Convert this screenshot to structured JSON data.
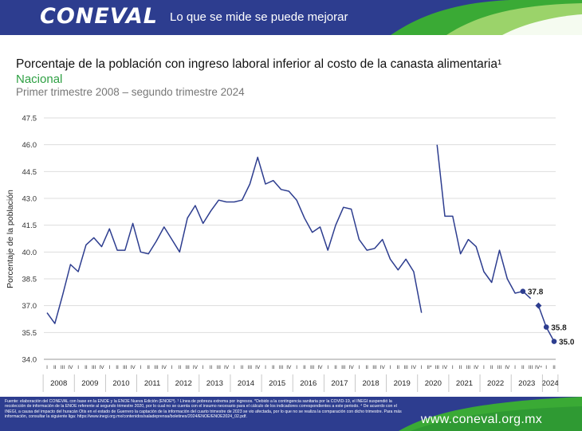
{
  "header": {
    "logo": "CONEVAL",
    "slogan": "Lo que se mide se puede mejorar",
    "colors": {
      "bar": "#2d3d8f",
      "accent_green": "#3aaa35",
      "accent_light": "#9bd36a"
    }
  },
  "chart_data": {
    "type": "line",
    "title": "Porcentaje de la población con ingreso laboral inferior al costo de la canasta alimentaria¹",
    "subtitle": "Nacional",
    "period": "Primer trimestre 2008 – segundo trimestre 2024",
    "ylabel": "Porcentaje de la población",
    "ylim": [
      34.0,
      47.5
    ],
    "yticks": [
      "34.0",
      "35.5",
      "37.0",
      "38.5",
      "40.0",
      "41.5",
      "43.0",
      "44.5",
      "46.0",
      "47.5"
    ],
    "grid": "horizontal",
    "line_color": "#2d3d8f",
    "years": [
      "2008",
      "2009",
      "2010",
      "2011",
      "2012",
      "2013",
      "2014",
      "2015",
      "2016",
      "2017",
      "2018",
      "2019",
      "2020",
      "2021",
      "2022",
      "2023",
      "2024"
    ],
    "quarter_labels": [
      "I",
      "II",
      "III",
      "IV",
      "I",
      "II",
      "III",
      "IV",
      "I",
      "II",
      "III",
      "IV",
      "I",
      "II",
      "III",
      "IV",
      "I",
      "II",
      "III",
      "IV",
      "I",
      "II",
      "III",
      "IV",
      "I",
      "II",
      "III",
      "IV",
      "I",
      "II",
      "III",
      "IV",
      "I",
      "II",
      "III",
      "IV",
      "I",
      "II",
      "III",
      "IV",
      "I",
      "II",
      "III",
      "IV",
      "I",
      "II",
      "III",
      "IV",
      "I",
      "II*",
      "III",
      "IV",
      "I",
      "II",
      "III",
      "IV",
      "I",
      "II",
      "III",
      "IV",
      "I",
      "II",
      "III",
      "IV⁴",
      "I",
      "II"
    ],
    "series": [
      {
        "values": [
          36.6,
          36.0,
          37.6,
          39.3,
          38.9,
          40.4,
          40.8,
          40.3,
          41.3,
          40.1,
          40.1,
          41.6,
          40.0,
          39.9,
          40.6,
          41.4,
          40.7,
          40.0,
          41.9,
          42.6,
          41.6,
          42.3,
          42.9,
          42.8,
          42.8,
          42.9,
          43.8,
          45.3,
          43.8,
          44.0,
          43.5,
          43.4,
          42.9,
          41.9,
          41.1,
          41.4,
          40.1,
          41.5,
          42.5,
          42.4,
          40.7,
          40.1,
          40.2,
          40.7,
          39.6,
          39.0,
          39.6,
          38.9,
          36.6,
          null,
          46.0,
          42.0,
          42.0,
          39.9,
          40.7,
          40.3,
          38.9,
          38.3,
          40.1,
          38.5,
          37.7,
          37.8,
          37.4,
          null,
          null,
          null
        ]
      },
      {
        "values": [
          null,
          null,
          null,
          null,
          null,
          null,
          null,
          null,
          null,
          null,
          null,
          null,
          null,
          null,
          null,
          null,
          null,
          null,
          null,
          null,
          null,
          null,
          null,
          null,
          null,
          null,
          null,
          null,
          null,
          null,
          null,
          null,
          null,
          null,
          null,
          null,
          null,
          null,
          null,
          null,
          null,
          null,
          null,
          null,
          null,
          null,
          null,
          null,
          null,
          null,
          null,
          null,
          null,
          null,
          null,
          null,
          null,
          null,
          null,
          null,
          null,
          null,
          null,
          37.0,
          35.8,
          35.0
        ]
      }
    ],
    "data_labels": [
      {
        "index": 61,
        "value": 37.8,
        "text": "37.8"
      },
      {
        "index": 64,
        "value": 35.8,
        "text": "35.8"
      },
      {
        "index": 65,
        "value": 35.0,
        "text": "35.0"
      }
    ]
  },
  "footer": {
    "source": "Fuente: elaboración del CONEVAL con base en la ENOE y la ENOE Nueva Edición (ENOEᴺ). ¹ Línea de pobreza extrema por ingresos. *Debido a la contingencia sanitaria por la COVID-19, el INEGI suspendió la recolección de información de la ENOE referente al segundo trimestre 2020, por lo cual no se cuenta con el insumo necesario para el cálculo de los indicadores correspondientes a este periodo. ⁴ De acuerdo con el INEGI, a causa del impacto del huracán Otis en el estado de Guerrero la captación de la información del cuarto trimestre de 2023 se vio afectada, por lo que no se realiza la comparación con dicho trimestre. Para más información, consultar la siguiente liga: https://www.inegi.org.mx/contenidos/saladeprensa/boletines/2024/ENOE/ENOE2024_02.pdf.",
    "website": "www.coneval.org.mx"
  }
}
